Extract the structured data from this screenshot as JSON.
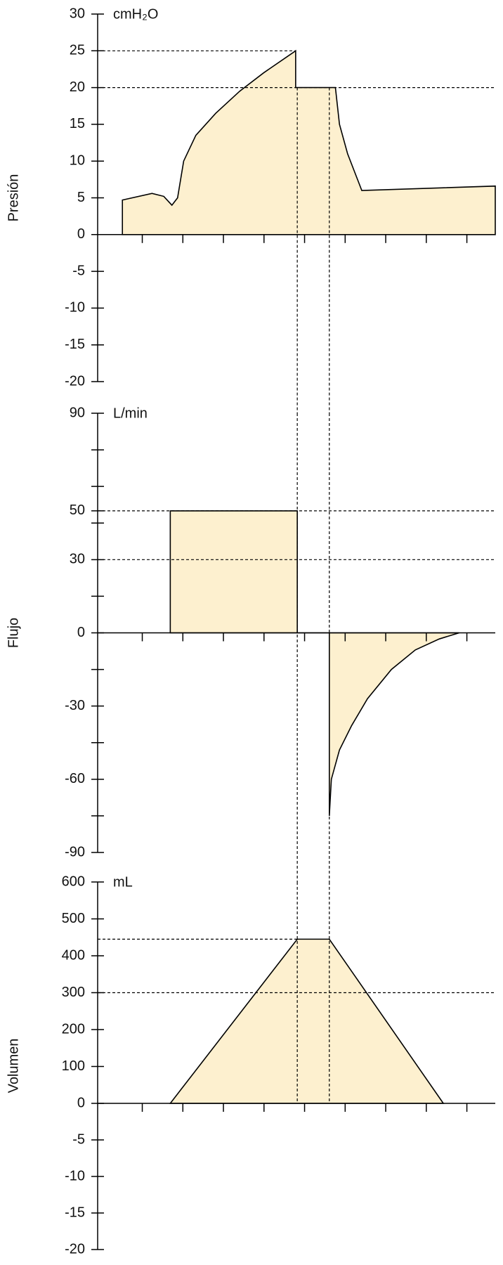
{
  "chart_data": [
    {
      "type": "area",
      "ylabel": "Presión",
      "unit": "cmH₂O",
      "ylim": [
        -20,
        30
      ],
      "yticks": [
        30,
        25,
        20,
        15,
        10,
        5,
        0,
        -5,
        -10,
        -15,
        -20
      ],
      "xlim": [
        -1.1,
        8.7
      ],
      "xticks": [
        0,
        1,
        2,
        3,
        4,
        5,
        6,
        7,
        8
      ],
      "fill": "#fdf0cf",
      "stroke": "#000000",
      "x": [
        -0.49,
        0.24,
        0.53,
        0.73,
        0.87,
        1.02,
        1.32,
        1.81,
        2.4,
        2.99,
        3.78,
        3.78,
        4.76,
        4.86,
        5.06,
        5.41,
        8.7
      ],
      "values": [
        4.7,
        5.6,
        5.2,
        4.0,
        5.0,
        10,
        13.5,
        16.5,
        19.5,
        22,
        25,
        20,
        20,
        15,
        11,
        6,
        6.6
      ],
      "hlines": [
        {
          "y": 25,
          "to_curve": true
        },
        {
          "y": 20
        }
      ],
      "vlines": [
        3.82,
        4.61
      ],
      "vline_from": 20
    },
    {
      "type": "area",
      "ylabel": "Flujo",
      "unit": "L/min",
      "ylim": [
        -90,
        90
      ],
      "yticks": [
        90,
        50,
        30,
        0,
        -30,
        -60,
        -90
      ],
      "minor_yticks": [
        75,
        60,
        45,
        15,
        -15,
        -45,
        -75
      ],
      "xlim": [
        -1.1,
        8.7
      ],
      "xticks": [
        0,
        1,
        2,
        3,
        4,
        5,
        6,
        7,
        8
      ],
      "fill": "#fdf0cf",
      "stroke": "#000000",
      "x": [
        0.69,
        0.69,
        3.82,
        3.82,
        4.61,
        4.61,
        4.66,
        4.86,
        5.16,
        5.55,
        6.14,
        6.73,
        7.32,
        7.81
      ],
      "values": [
        0,
        50,
        50,
        0,
        0,
        -75,
        -60,
        -48,
        -38,
        -27,
        -15,
        -7,
        -2.5,
        0
      ],
      "hlines": [
        {
          "y": 50
        },
        {
          "y": 30
        }
      ],
      "vlines": [
        3.82,
        4.61
      ]
    },
    {
      "type": "area",
      "ylabel": "Volumen",
      "unit": "mL",
      "ylim": [
        0,
        600
      ],
      "yticks": [
        600,
        500,
        400,
        300,
        200,
        100,
        0
      ],
      "lower_ylim": [
        -20,
        0
      ],
      "lower_yticks": [
        -5,
        -10,
        -15,
        -20
      ],
      "xlim": [
        -1.1,
        8.7
      ],
      "xticks": [
        0,
        1,
        2,
        3,
        4,
        5,
        6,
        7,
        8
      ],
      "fill": "#fdf0cf",
      "stroke": "#000000",
      "x": [
        0.69,
        3.82,
        4.61,
        7.42
      ],
      "values": [
        0,
        445,
        445,
        0
      ],
      "hlines": [
        {
          "y": 445,
          "to_curve": true
        },
        {
          "y": 300
        }
      ],
      "vlines": [
        3.82,
        4.61
      ],
      "vline_to": 0
    }
  ]
}
